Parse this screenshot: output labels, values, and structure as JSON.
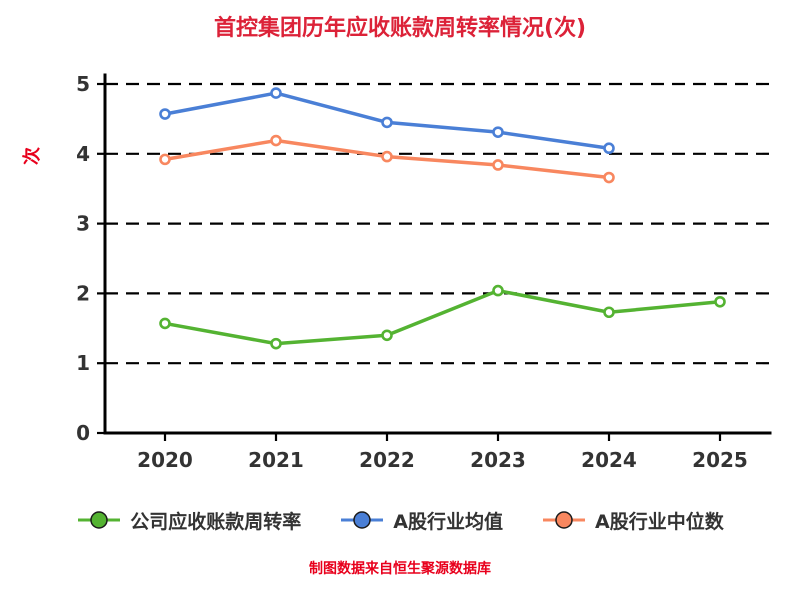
{
  "title": "首控集团历年应收账款周转率情况(次)",
  "y_axis_label": "次",
  "footer": "制图数据来自恒生聚源数据库",
  "colors": {
    "title": "#dc2238",
    "axis": "#000000",
    "gridline": "#000000",
    "tick_label": "#333333",
    "series_company": "#54b332",
    "series_industry_mean": "#4a7fd6",
    "series_industry_median": "#f8875f"
  },
  "chart_data": {
    "type": "line",
    "title": "首控集团历年应收账款周转率情况(次)",
    "xlabel": "",
    "ylabel": "次",
    "categories": [
      "2020",
      "2021",
      "2022",
      "2023",
      "2024",
      "2025"
    ],
    "series": [
      {
        "name": "公司应收账款周转率",
        "color_key": "series_company",
        "values": [
          1.57,
          1.28,
          1.4,
          2.04,
          1.73,
          1.88
        ]
      },
      {
        "name": "A股行业均值",
        "color_key": "series_industry_mean",
        "values": [
          4.57,
          4.87,
          4.45,
          4.31,
          4.08,
          null
        ]
      },
      {
        "name": "A股行业中位数",
        "color_key": "series_industry_median",
        "values": [
          3.92,
          4.19,
          3.96,
          3.84,
          3.66,
          null
        ]
      }
    ],
    "ylim": [
      0,
      5
    ],
    "y_ticks": [
      0,
      1,
      2,
      3,
      4,
      5
    ],
    "grid": "dashed-horizontal",
    "legend_position": "bottom",
    "data_source_note": "制图数据来自恒生聚源数据库"
  }
}
